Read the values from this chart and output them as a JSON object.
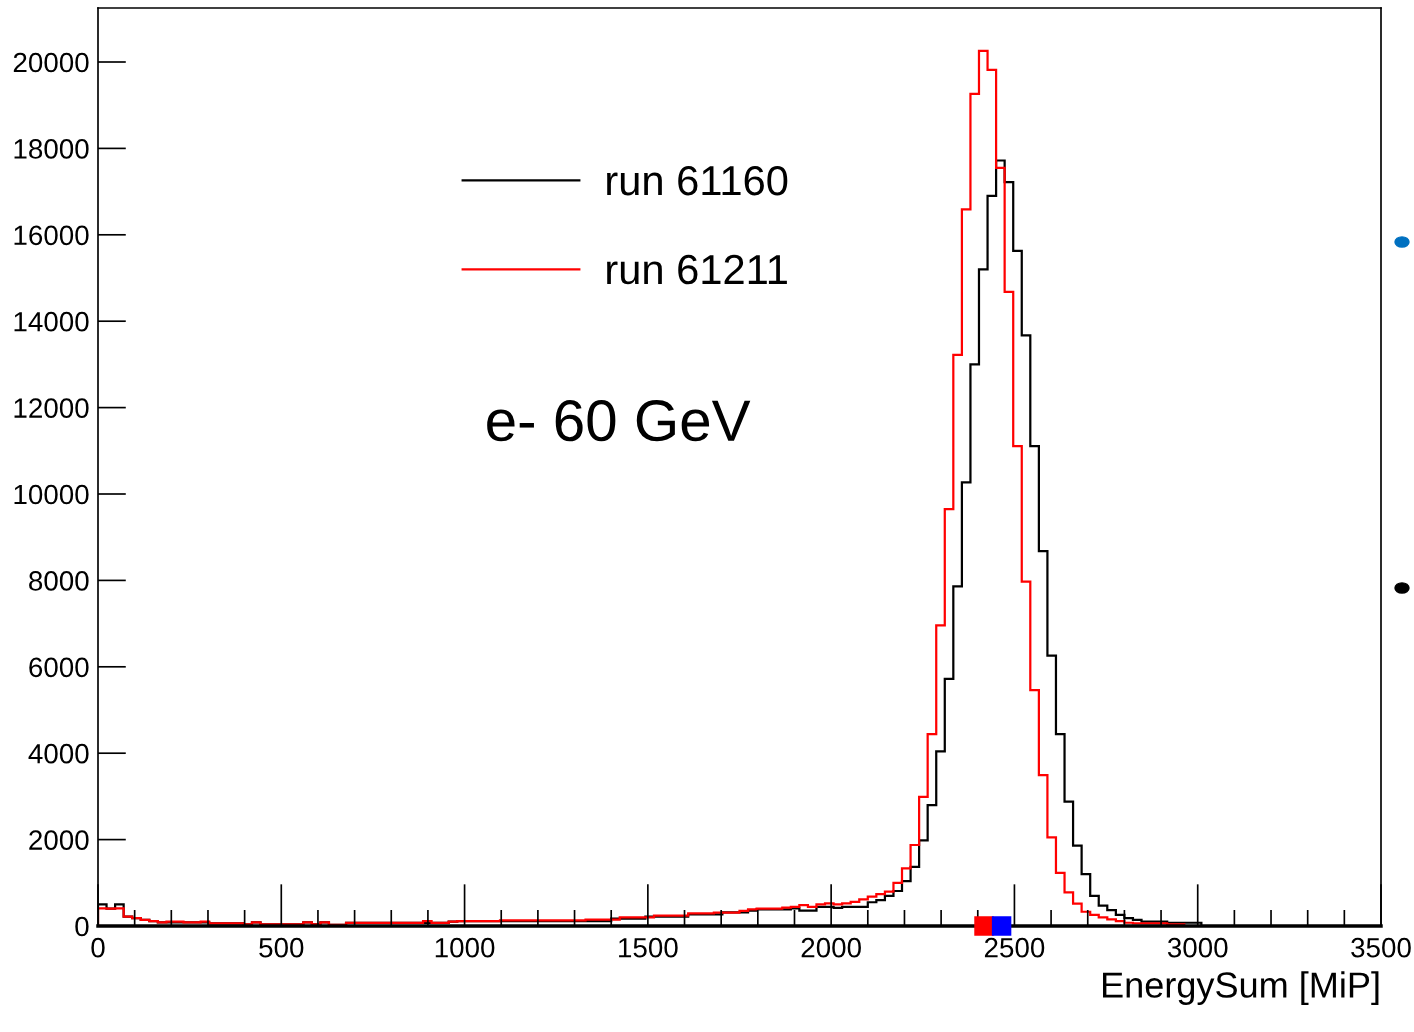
{
  "chart_data": {
    "type": "histogram",
    "xlabel": "EnergySum [MiP]",
    "annotations": [
      "e- 60 GeV"
    ],
    "bins": [
      0,
      23.3,
      46.7,
      70,
      93.3,
      116.7,
      140,
      163.3,
      186.7,
      210,
      233.3,
      256.7,
      280,
      303.3,
      326.7,
      350,
      373.3,
      396.7,
      420,
      443.3,
      466.7,
      490,
      513.3,
      536.7,
      560,
      583.3,
      606.7,
      630,
      653.3,
      676.7,
      700,
      723.3,
      746.7,
      770,
      793.3,
      816.7,
      840,
      863.3,
      886.7,
      910,
      933.3,
      956.7,
      980,
      1003.3,
      1026.7,
      1050,
      1073.3,
      1096.7,
      1120,
      1143.3,
      1166.7,
      1190,
      1213.3,
      1236.7,
      1260,
      1283.3,
      1306.7,
      1330,
      1353.3,
      1376.7,
      1400,
      1423.3,
      1446.7,
      1470,
      1493.3,
      1516.7,
      1540,
      1563.3,
      1586.7,
      1610,
      1633.3,
      1656.7,
      1680,
      1703.3,
      1726.7,
      1750,
      1773.3,
      1796.7,
      1820,
      1843.3,
      1866.7,
      1890,
      1913.3,
      1936.7,
      1960,
      1983.3,
      2006.7,
      2030,
      2053.3,
      2076.7,
      2100,
      2123.3,
      2146.7,
      2170,
      2193.3,
      2216.7,
      2240,
      2263.3,
      2286.7,
      2310,
      2333.3,
      2356.7,
      2380,
      2403.3,
      2426.7,
      2450,
      2473.3,
      2496.7,
      2520,
      2543.3,
      2566.7,
      2590,
      2613.3,
      2636.7,
      2660,
      2683.3,
      2706.7,
      2730,
      2753.3,
      2776.7,
      2800,
      2823.3,
      2846.7,
      2870,
      2893.3,
      2916.7,
      2940,
      2963.3,
      2986.7,
      3010
    ],
    "series": [
      {
        "name": "run 61160",
        "color": "#000000",
        "values": [
          500,
          400,
          500,
          215,
          180,
          140,
          115,
          85,
          85,
          85,
          85,
          85,
          85,
          60,
          60,
          60,
          60,
          40,
          85,
          40,
          40,
          40,
          40,
          40,
          85,
          40,
          85,
          25,
          25,
          70,
          70,
          70,
          70,
          70,
          70,
          70,
          70,
          70,
          70,
          70,
          70,
          100,
          115,
          115,
          115,
          115,
          115,
          115,
          115,
          115,
          115,
          115,
          115,
          115,
          115,
          115,
          115,
          115,
          115,
          115,
          170,
          170,
          170,
          170,
          215,
          215,
          215,
          215,
          215,
          270,
          270,
          270,
          270,
          315,
          315,
          315,
          355,
          385,
          385,
          385,
          385,
          410,
          355,
          355,
          445,
          445,
          420,
          445,
          445,
          445,
          550,
          600,
          695,
          810,
          1040,
          1370,
          1980,
          2800,
          4040,
          5720,
          7860,
          10270,
          13000,
          15200,
          16900,
          17720,
          17220,
          15630,
          13670,
          11110,
          8680,
          6260,
          4440,
          2880,
          1860,
          1200,
          695,
          470,
          370,
          255,
          180,
          140,
          100,
          100,
          100,
          75,
          75,
          75,
          75
        ]
      },
      {
        "name": "run 61211",
        "color": "#ff0000",
        "values": [
          410,
          400,
          410,
          215,
          180,
          140,
          115,
          85,
          100,
          100,
          85,
          85,
          100,
          60,
          60,
          60,
          60,
          40,
          85,
          40,
          40,
          40,
          40,
          40,
          85,
          40,
          85,
          25,
          25,
          70,
          70,
          70,
          70,
          70,
          70,
          70,
          70,
          70,
          115,
          70,
          70,
          100,
          115,
          115,
          115,
          115,
          115,
          130,
          130,
          130,
          130,
          130,
          130,
          130,
          130,
          130,
          130,
          150,
          150,
          150,
          150,
          200,
          200,
          200,
          200,
          240,
          240,
          240,
          240,
          290,
          290,
          290,
          310,
          310,
          310,
          350,
          385,
          400,
          400,
          400,
          425,
          445,
          485,
          445,
          500,
          525,
          500,
          525,
          560,
          615,
          680,
          740,
          795,
          1000,
          1335,
          1875,
          2990,
          4440,
          6960,
          9650,
          13220,
          16590,
          19260,
          20260,
          19820,
          17550,
          14680,
          11110,
          7970,
          5460,
          3490,
          2050,
          1230,
          780,
          520,
          330,
          255,
          200,
          155,
          115,
          75,
          60,
          60,
          60,
          60,
          40,
          40,
          0,
          0
        ]
      },
      {
        "type": "scatter",
        "x": [
          2417
        ],
        "values": [
          0
        ],
        "color": "#ff0000",
        "marker": "square"
      },
      {
        "type": "scatter",
        "x": [
          2465
        ],
        "values": [
          0
        ],
        "color": "#0000ff",
        "marker": "square"
      }
    ],
    "xlim": [
      0,
      3500
    ],
    "ylim": [
      0,
      21250
    ],
    "xticks": [
      0,
      500,
      1000,
      1500,
      2000,
      2500,
      3000,
      3500
    ],
    "yticks": [
      0,
      2000,
      4000,
      6000,
      8000,
      10000,
      12000,
      14000,
      16000,
      18000,
      20000
    ],
    "legend": "top left",
    "grid": false
  }
}
